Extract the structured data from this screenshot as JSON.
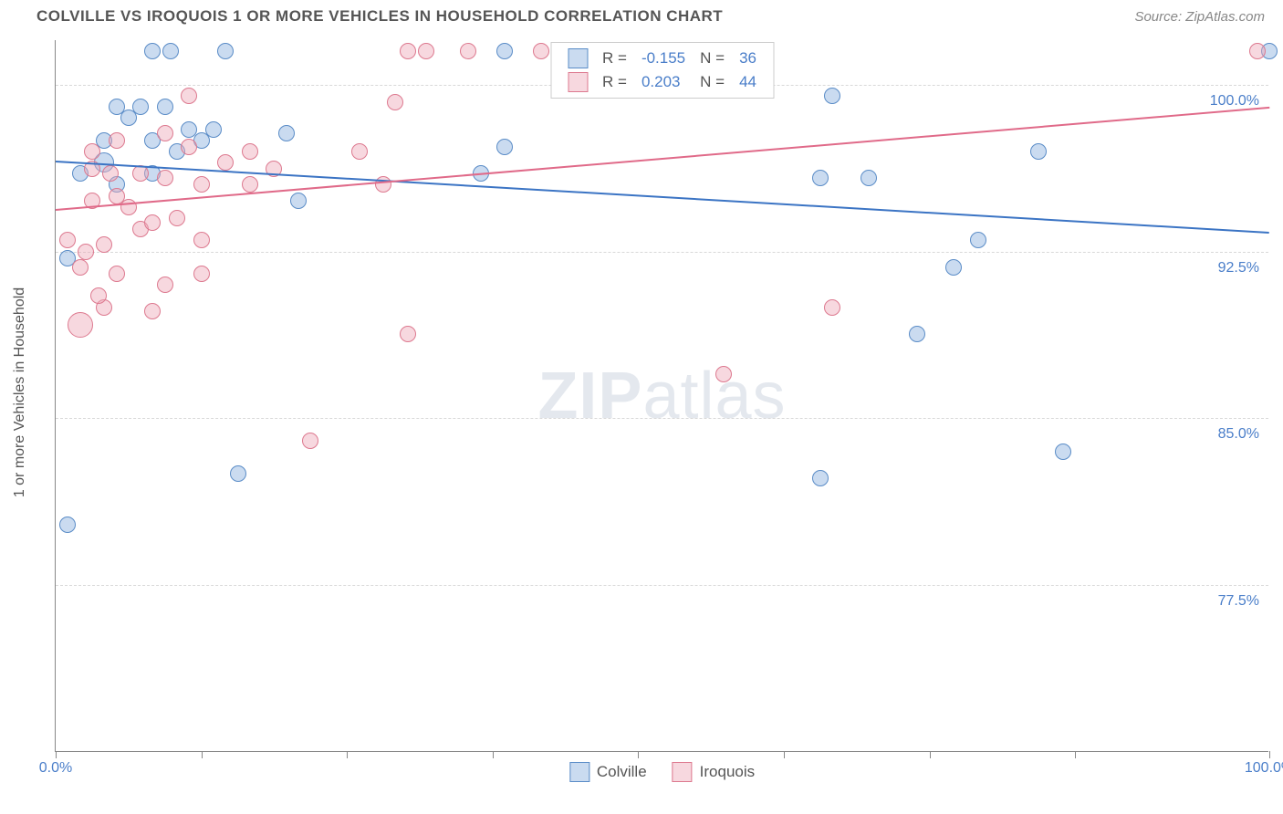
{
  "header": {
    "title": "COLVILLE VS IROQUOIS 1 OR MORE VEHICLES IN HOUSEHOLD CORRELATION CHART",
    "source": "Source: ZipAtlas.com"
  },
  "watermark": {
    "bold": "ZIP",
    "rest": "atlas"
  },
  "chart": {
    "type": "scatter",
    "background_color": "#ffffff",
    "grid_color": "#d8d8d8",
    "border_color": "#888888",
    "xlim": [
      0,
      100
    ],
    "ylim": [
      70,
      102
    ],
    "ytick_values": [
      77.5,
      85.0,
      92.5,
      100.0
    ],
    "ytick_labels": [
      "77.5%",
      "85.0%",
      "92.5%",
      "100.0%"
    ],
    "xtick_values": [
      0,
      12,
      24,
      36,
      48,
      60,
      72,
      84,
      100
    ],
    "xtick_labels_shown": {
      "0": "0.0%",
      "100": "100.0%"
    },
    "ylabel": "1 or more Vehicles in Household",
    "tick_fontsize": 16,
    "tick_color": "#4a7ec9",
    "label_fontsize": 16,
    "label_color": "#555555",
    "series": [
      {
        "name": "Colville",
        "marker_fill": "rgba(137,175,222,0.45)",
        "marker_stroke": "#5a8cc7",
        "points": [
          {
            "x": 8,
            "y": 101.5,
            "r": 9
          },
          {
            "x": 9.5,
            "y": 101.5,
            "r": 9
          },
          {
            "x": 14,
            "y": 101.5,
            "r": 9
          },
          {
            "x": 37,
            "y": 101.5,
            "r": 9
          },
          {
            "x": 55,
            "y": 101.5,
            "r": 9
          },
          {
            "x": 100,
            "y": 101.5,
            "r": 9
          },
          {
            "x": 5,
            "y": 99,
            "r": 9
          },
          {
            "x": 7,
            "y": 99,
            "r": 9
          },
          {
            "x": 9,
            "y": 99,
            "r": 9
          },
          {
            "x": 64,
            "y": 99.5,
            "r": 9
          },
          {
            "x": 4,
            "y": 97.5,
            "r": 9
          },
          {
            "x": 8,
            "y": 97.5,
            "r": 9
          },
          {
            "x": 11,
            "y": 98,
            "r": 9
          },
          {
            "x": 13,
            "y": 98,
            "r": 9
          },
          {
            "x": 19,
            "y": 97.8,
            "r": 9
          },
          {
            "x": 81,
            "y": 97,
            "r": 9
          },
          {
            "x": 4,
            "y": 96.5,
            "r": 11
          },
          {
            "x": 37,
            "y": 97.2,
            "r": 9
          },
          {
            "x": 2,
            "y": 96,
            "r": 9
          },
          {
            "x": 5,
            "y": 95.5,
            "r": 9
          },
          {
            "x": 8,
            "y": 96,
            "r": 9
          },
          {
            "x": 63,
            "y": 95.8,
            "r": 9
          },
          {
            "x": 67,
            "y": 95.8,
            "r": 9
          },
          {
            "x": 35,
            "y": 96,
            "r": 9
          },
          {
            "x": 20,
            "y": 94.8,
            "r": 9
          },
          {
            "x": 1,
            "y": 92.2,
            "r": 9
          },
          {
            "x": 74,
            "y": 91.8,
            "r": 9
          },
          {
            "x": 71,
            "y": 88.8,
            "r": 9
          },
          {
            "x": 15,
            "y": 82.5,
            "r": 9
          },
          {
            "x": 63,
            "y": 82.3,
            "r": 9
          },
          {
            "x": 83,
            "y": 83.5,
            "r": 9
          },
          {
            "x": 1,
            "y": 80.2,
            "r": 9
          },
          {
            "x": 76,
            "y": 93,
            "r": 9
          },
          {
            "x": 10,
            "y": 97,
            "r": 9
          },
          {
            "x": 12,
            "y": 97.5,
            "r": 9
          },
          {
            "x": 6,
            "y": 98.5,
            "r": 9
          }
        ],
        "trend": {
          "color": "#3b74c4",
          "x1": 0,
          "y1": 96.6,
          "x2": 100,
          "y2": 93.4
        }
      },
      {
        "name": "Iroquois",
        "marker_fill": "rgba(238,168,183,0.45)",
        "marker_stroke": "#dd798f",
        "points": [
          {
            "x": 29,
            "y": 101.5,
            "r": 9
          },
          {
            "x": 30.5,
            "y": 101.5,
            "r": 9
          },
          {
            "x": 34,
            "y": 101.5,
            "r": 9
          },
          {
            "x": 40,
            "y": 101.5,
            "r": 9
          },
          {
            "x": 99,
            "y": 101.5,
            "r": 9
          },
          {
            "x": 11,
            "y": 99.5,
            "r": 9
          },
          {
            "x": 28,
            "y": 99.2,
            "r": 9
          },
          {
            "x": 5,
            "y": 97.5,
            "r": 9
          },
          {
            "x": 9,
            "y": 97.8,
            "r": 9
          },
          {
            "x": 11,
            "y": 97.2,
            "r": 9
          },
          {
            "x": 16,
            "y": 97,
            "r": 9
          },
          {
            "x": 25,
            "y": 97,
            "r": 9
          },
          {
            "x": 3,
            "y": 96.2,
            "r": 9
          },
          {
            "x": 4.5,
            "y": 96,
            "r": 9
          },
          {
            "x": 7,
            "y": 96,
            "r": 9
          },
          {
            "x": 9,
            "y": 95.8,
            "r": 9
          },
          {
            "x": 12,
            "y": 95.5,
            "r": 9
          },
          {
            "x": 16,
            "y": 95.5,
            "r": 9
          },
          {
            "x": 27,
            "y": 95.5,
            "r": 9
          },
          {
            "x": 3,
            "y": 94.8,
            "r": 9
          },
          {
            "x": 10,
            "y": 94,
            "r": 9
          },
          {
            "x": 1,
            "y": 93,
            "r": 9
          },
          {
            "x": 2.5,
            "y": 92.5,
            "r": 9
          },
          {
            "x": 2,
            "y": 91.8,
            "r": 9
          },
          {
            "x": 12,
            "y": 91.5,
            "r": 9
          },
          {
            "x": 4,
            "y": 90,
            "r": 9
          },
          {
            "x": 8,
            "y": 89.8,
            "r": 9
          },
          {
            "x": 2,
            "y": 89.2,
            "r": 14
          },
          {
            "x": 29,
            "y": 88.8,
            "r": 9
          },
          {
            "x": 64,
            "y": 90,
            "r": 9
          },
          {
            "x": 55,
            "y": 87,
            "r": 9
          },
          {
            "x": 21,
            "y": 84,
            "r": 9
          },
          {
            "x": 5,
            "y": 95,
            "r": 9
          },
          {
            "x": 7,
            "y": 93.5,
            "r": 9
          },
          {
            "x": 4,
            "y": 92.8,
            "r": 9
          },
          {
            "x": 3,
            "y": 97,
            "r": 9
          },
          {
            "x": 14,
            "y": 96.5,
            "r": 9
          },
          {
            "x": 18,
            "y": 96.2,
            "r": 9
          },
          {
            "x": 6,
            "y": 94.5,
            "r": 9
          },
          {
            "x": 8,
            "y": 93.8,
            "r": 9
          },
          {
            "x": 12,
            "y": 93,
            "r": 9
          },
          {
            "x": 5,
            "y": 91.5,
            "r": 9
          },
          {
            "x": 9,
            "y": 91,
            "r": 9
          },
          {
            "x": 3.5,
            "y": 90.5,
            "r": 9
          }
        ],
        "trend": {
          "color": "#e06a89",
          "x1": 0,
          "y1": 94.4,
          "x2": 100,
          "y2": 99.0
        }
      }
    ],
    "legend_top": {
      "rows": [
        {
          "swatch_fill": "rgba(137,175,222,0.45)",
          "swatch_stroke": "#5a8cc7",
          "r_label": "R =",
          "r_value": "-0.155",
          "n_label": "N =",
          "n_value": "36"
        },
        {
          "swatch_fill": "rgba(238,168,183,0.45)",
          "swatch_stroke": "#dd798f",
          "r_label": "R =",
          "r_value": "0.203",
          "n_label": "N =",
          "n_value": "44"
        }
      ]
    },
    "legend_bottom": [
      {
        "swatch_fill": "rgba(137,175,222,0.45)",
        "swatch_stroke": "#5a8cc7",
        "label": "Colville"
      },
      {
        "swatch_fill": "rgba(238,168,183,0.45)",
        "swatch_stroke": "#dd798f",
        "label": "Iroquois"
      }
    ]
  }
}
